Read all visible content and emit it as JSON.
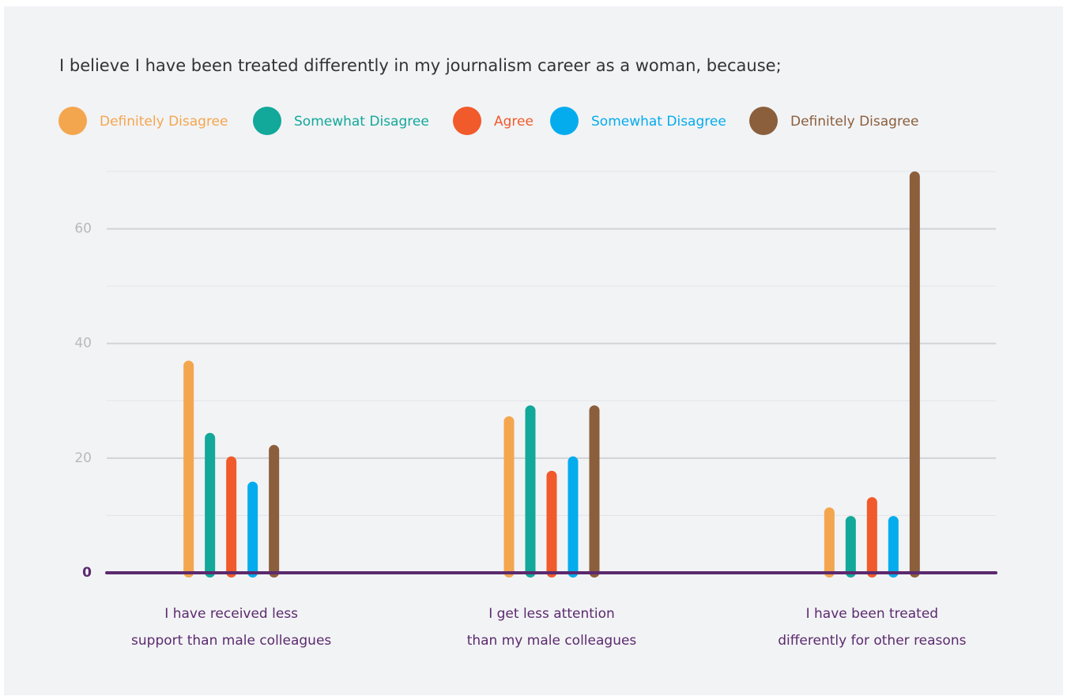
{
  "chart_data": {
    "type": "bar",
    "title": "I believe I have been treated differently in my journalism career as a woman, because;",
    "categories": [
      [
        "I have received less",
        "support than male colleagues"
      ],
      [
        "I get less attention",
        "than my male colleagues"
      ],
      [
        "I have been treated",
        "differently for other reasons"
      ]
    ],
    "series": [
      {
        "name": "Definitely Disagree",
        "color": "#f4a64e",
        "values": [
          37,
          27.3,
          11.4
        ]
      },
      {
        "name": "Somewhat Disagree",
        "color": "#12a89a",
        "values": [
          24.4,
          29.2,
          9.9
        ]
      },
      {
        "name": "Agree",
        "color": "#f15a2b",
        "values": [
          20.3,
          17.8,
          13.2
        ]
      },
      {
        "name": "Somewhat Disagree",
        "color": "#04acee",
        "values": [
          15.9,
          20.3,
          9.9
        ]
      },
      {
        "name": "Definitely Disagree",
        "color": "#8b5e3c",
        "values": [
          22.3,
          29.2,
          70
        ]
      }
    ],
    "ylim": [
      0,
      70
    ],
    "yticks": [
      0,
      20,
      40,
      60
    ],
    "minor_yticks": [
      10,
      30,
      50,
      70
    ],
    "grid": true
  }
}
